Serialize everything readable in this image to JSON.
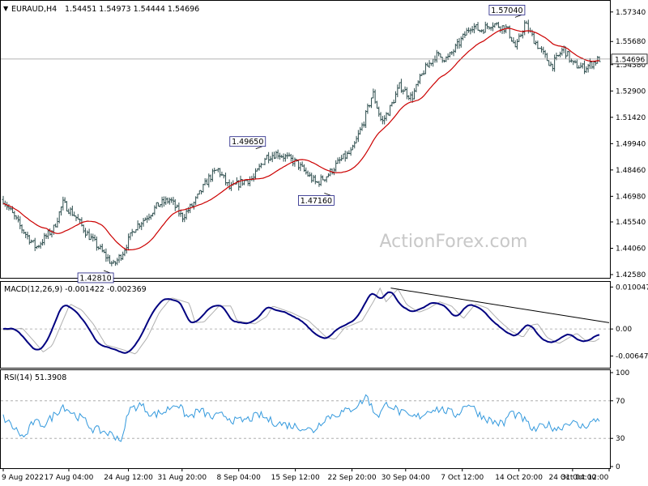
{
  "chart_data": [
    {
      "type": "candlestick",
      "title": "EURAUD,H4",
      "ohlc_label": "1.54451 1.54973 1.54444 1.54696",
      "ylim": [
        1.4258,
        1.5774
      ],
      "ytick_labels": [
        "1.57340",
        "1.55680",
        "1.54380",
        "1.52900",
        "1.51420",
        "1.49940",
        "1.48460",
        "1.46980",
        "1.45540",
        "1.44060",
        "1.42580"
      ],
      "ytick_values": [
        1.5734,
        1.5568,
        1.5438,
        1.529,
        1.5142,
        1.4994,
        1.4846,
        1.4698,
        1.4554,
        1.4406,
        1.4258
      ],
      "current_price": 1.54696,
      "current_price_label": "1.54696",
      "annotations": [
        {
          "text": "1.57040",
          "value": 1.5704,
          "t": 0.845
        },
        {
          "text": "1.49650",
          "value": 1.4965,
          "t": 0.41
        },
        {
          "text": "1.47160",
          "value": 1.4716,
          "t": 0.525
        },
        {
          "text": "1.42810",
          "value": 1.4281,
          "t": 0.155
        }
      ],
      "anchors": [
        [
          0.0,
          1.468
        ],
        [
          0.03,
          1.452
        ],
        [
          0.055,
          1.441
        ],
        [
          0.085,
          1.452
        ],
        [
          0.1,
          1.466
        ],
        [
          0.12,
          1.459
        ],
        [
          0.14,
          1.449
        ],
        [
          0.16,
          1.441
        ],
        [
          0.185,
          1.431
        ],
        [
          0.2,
          1.438
        ],
        [
          0.22,
          1.452
        ],
        [
          0.24,
          1.458
        ],
        [
          0.26,
          1.465
        ],
        [
          0.28,
          1.468
        ],
        [
          0.3,
          1.458
        ],
        [
          0.32,
          1.466
        ],
        [
          0.345,
          1.48
        ],
        [
          0.36,
          1.485
        ],
        [
          0.38,
          1.474
        ],
        [
          0.4,
          1.478
        ],
        [
          0.42,
          1.48
        ],
        [
          0.44,
          1.492
        ],
        [
          0.46,
          1.494
        ],
        [
          0.49,
          1.489
        ],
        [
          0.505,
          1.484
        ],
        [
          0.525,
          1.477
        ],
        [
          0.545,
          1.482
        ],
        [
          0.565,
          1.49
        ],
        [
          0.585,
          1.495
        ],
        [
          0.605,
          1.512
        ],
        [
          0.62,
          1.528
        ],
        [
          0.635,
          1.511
        ],
        [
          0.65,
          1.52
        ],
        [
          0.665,
          1.532
        ],
        [
          0.685,
          1.525
        ],
        [
          0.705,
          1.54
        ],
        [
          0.725,
          1.549
        ],
        [
          0.745,
          1.547
        ],
        [
          0.765,
          1.556
        ],
        [
          0.785,
          1.566
        ],
        [
          0.8,
          1.563
        ],
        [
          0.82,
          1.567
        ],
        [
          0.845,
          1.564
        ],
        [
          0.86,
          1.553
        ],
        [
          0.875,
          1.567
        ],
        [
          0.89,
          1.558
        ],
        [
          0.905,
          1.55
        ],
        [
          0.92,
          1.543
        ],
        [
          0.94,
          1.553
        ],
        [
          0.955,
          1.544
        ],
        [
          0.975,
          1.542
        ],
        [
          1.0,
          1.547
        ]
      ]
    },
    {
      "type": "line",
      "title": "MACD(12,26,9) -0.001422 -0.002369",
      "ylim": [
        -0.0085,
        0.0105
      ],
      "ytick_labels": [
        "0.010047",
        "0.00",
        "-0.006476"
      ],
      "ytick_values": [
        0.010047,
        0.0,
        -0.006476
      ],
      "anchors": [
        [
          0.0,
          -0.0002
        ],
        [
          0.02,
          0.0002
        ],
        [
          0.04,
          -0.003
        ],
        [
          0.055,
          -0.0055
        ],
        [
          0.07,
          -0.004
        ],
        [
          0.1,
          0.006
        ],
        [
          0.12,
          0.0045
        ],
        [
          0.14,
          0.001
        ],
        [
          0.16,
          -0.0038
        ],
        [
          0.19,
          -0.005
        ],
        [
          0.21,
          -0.006
        ],
        [
          0.23,
          -0.002
        ],
        [
          0.25,
          0.004
        ],
        [
          0.27,
          0.0075
        ],
        [
          0.3,
          0.0062
        ],
        [
          0.31,
          0.0015
        ],
        [
          0.325,
          0.0017
        ],
        [
          0.35,
          0.0055
        ],
        [
          0.37,
          0.0055
        ],
        [
          0.38,
          0.002
        ],
        [
          0.41,
          0.0012
        ],
        [
          0.43,
          0.003
        ],
        [
          0.44,
          0.0055
        ],
        [
          0.47,
          0.004
        ],
        [
          0.5,
          0.002
        ],
        [
          0.53,
          -0.002
        ],
        [
          0.545,
          -0.0025
        ],
        [
          0.56,
          0.0002
        ],
        [
          0.59,
          0.002
        ],
        [
          0.61,
          0.0068
        ],
        [
          0.62,
          0.0098
        ],
        [
          0.63,
          0.0065
        ],
        [
          0.65,
          0.0096
        ],
        [
          0.665,
          0.0058
        ],
        [
          0.685,
          0.004
        ],
        [
          0.7,
          0.0048
        ],
        [
          0.72,
          0.0065
        ],
        [
          0.74,
          0.0055
        ],
        [
          0.76,
          0.0025
        ],
        [
          0.78,
          0.006
        ],
        [
          0.8,
          0.005
        ],
        [
          0.82,
          0.002
        ],
        [
          0.84,
          -0.0005
        ],
        [
          0.86,
          -0.002
        ],
        [
          0.875,
          0.001
        ],
        [
          0.885,
          0.0012
        ],
        [
          0.9,
          -0.002
        ],
        [
          0.92,
          -0.0035
        ],
        [
          0.95,
          -0.001
        ],
        [
          0.965,
          -0.0028
        ],
        [
          0.98,
          -0.003
        ],
        [
          1.0,
          -0.0012
        ]
      ],
      "trendline": [
        [
          0.65,
          0.0098
        ],
        [
          1.0,
          0.0015
        ]
      ]
    },
    {
      "type": "line",
      "title": "RSI(14) 51.3908",
      "ylim": [
        0,
        100
      ],
      "ytick_labels": [
        "100",
        "70",
        "30",
        "0"
      ],
      "ytick_values": [
        100,
        70,
        30,
        0
      ],
      "levels": [
        70,
        30
      ],
      "anchors": [
        [
          0.0,
          52
        ],
        [
          0.02,
          40
        ],
        [
          0.035,
          30
        ],
        [
          0.05,
          47
        ],
        [
          0.07,
          45
        ],
        [
          0.09,
          58
        ],
        [
          0.1,
          65
        ],
        [
          0.12,
          55
        ],
        [
          0.135,
          50
        ],
        [
          0.15,
          40
        ],
        [
          0.17,
          37
        ],
        [
          0.19,
          32
        ],
        [
          0.2,
          28
        ],
        [
          0.21,
          60
        ],
        [
          0.23,
          66
        ],
        [
          0.25,
          55
        ],
        [
          0.27,
          58
        ],
        [
          0.29,
          68
        ],
        [
          0.31,
          52
        ],
        [
          0.33,
          60
        ],
        [
          0.35,
          52
        ],
        [
          0.37,
          55
        ],
        [
          0.39,
          48
        ],
        [
          0.41,
          50
        ],
        [
          0.43,
          55
        ],
        [
          0.45,
          48
        ],
        [
          0.47,
          45
        ],
        [
          0.5,
          42
        ],
        [
          0.52,
          38
        ],
        [
          0.54,
          52
        ],
        [
          0.56,
          56
        ],
        [
          0.58,
          60
        ],
        [
          0.6,
          68
        ],
        [
          0.61,
          76
        ],
        [
          0.62,
          60
        ],
        [
          0.63,
          55
        ],
        [
          0.645,
          68
        ],
        [
          0.665,
          58
        ],
        [
          0.685,
          52
        ],
        [
          0.7,
          54
        ],
        [
          0.72,
          62
        ],
        [
          0.74,
          60
        ],
        [
          0.76,
          55
        ],
        [
          0.78,
          68
        ],
        [
          0.8,
          55
        ],
        [
          0.82,
          48
        ],
        [
          0.84,
          45
        ],
        [
          0.85,
          58
        ],
        [
          0.87,
          52
        ],
        [
          0.89,
          38
        ],
        [
          0.91,
          45
        ],
        [
          0.93,
          40
        ],
        [
          0.95,
          48
        ],
        [
          0.97,
          42
        ],
        [
          1.0,
          51
        ]
      ]
    }
  ],
  "x_axis_labels": [
    "9 Aug 2022",
    "17 Aug 04:00",
    "24 Aug 12:00",
    "31 Aug 20:00",
    "8 Sep 04:00",
    "15 Sep 12:00",
    "22 Sep 20:00",
    "30 Sep 04:00",
    "7 Oct 12:00",
    "14 Oct 20:00",
    "24 Oct 04:00",
    "31 Oct 12:00"
  ],
  "x_axis_positions": [
    0.0,
    0.11,
    0.21,
    0.3,
    0.395,
    0.49,
    0.585,
    0.675,
    0.77,
    0.865,
    0.955,
    1.045
  ],
  "watermark": "ActionForex.com",
  "colors": {
    "candles": "#2f4f4f",
    "moving_average": "#cc0000",
    "macd_line": "#000080",
    "signal_line": "#b0b0b0",
    "rsi_line": "#3399dd",
    "level_line": "#a0a0a0",
    "watermark": "#c8c8c8"
  }
}
